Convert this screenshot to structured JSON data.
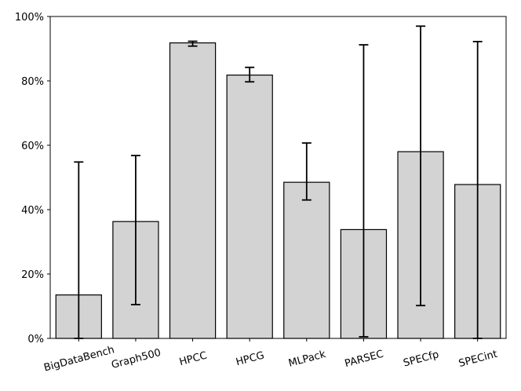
{
  "chart_data": {
    "type": "bar",
    "title": "",
    "xlabel": "",
    "ylabel": "",
    "ylim": [
      0,
      100
    ],
    "y_ticks": [
      0,
      20,
      40,
      60,
      80,
      100
    ],
    "y_tick_labels": [
      "0%",
      "20%",
      "40%",
      "60%",
      "80%",
      "100%"
    ],
    "grid": false,
    "categories": [
      "BigDataBench",
      "Graph500",
      "HPCC",
      "HPCG",
      "MLPack",
      "PARSEC",
      "SPECfp",
      "SPECint"
    ],
    "values": [
      13.5,
      36.3,
      91.8,
      81.8,
      48.5,
      33.8,
      58.0,
      47.8
    ],
    "error_low": [
      0.0,
      10.5,
      90.8,
      79.7,
      43.0,
      0.5,
      10.2,
      0.0
    ],
    "error_high": [
      54.8,
      56.8,
      92.3,
      84.2,
      60.7,
      91.2,
      97.0,
      92.2
    ],
    "bar_color": "#d3d3d3",
    "edge_color": "#000000"
  }
}
